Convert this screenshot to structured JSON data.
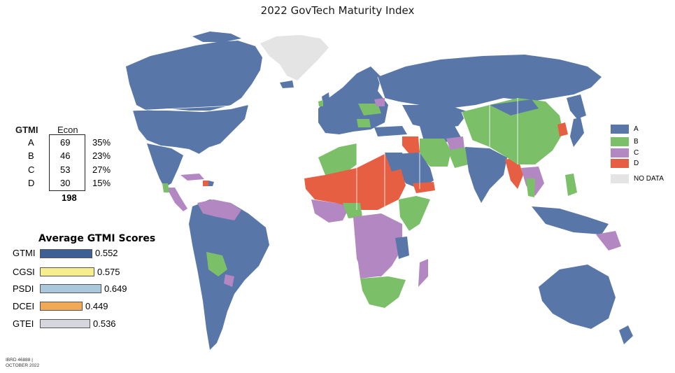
{
  "title": "2022 GovTech Maturity Index",
  "table": {
    "header_gtmi": "GTMI",
    "header_econ": "Econ",
    "rows": [
      {
        "cls": "A",
        "count": "69",
        "pct": "35%"
      },
      {
        "cls": "B",
        "count": "46",
        "pct": "23%"
      },
      {
        "cls": "C",
        "count": "53",
        "pct": "27%"
      },
      {
        "cls": "D",
        "count": "30",
        "pct": "15%"
      }
    ],
    "total": "198"
  },
  "averages": {
    "title": "Average GTMI Scores",
    "items": [
      {
        "label": "GTMI",
        "value": "0.552",
        "score": 0.552,
        "color": "#3d5f96"
      },
      {
        "label": "CGSI",
        "value": "0.575",
        "score": 0.575,
        "color": "#f6ee8e"
      },
      {
        "label": "PSDI",
        "value": "0.649",
        "score": 0.649,
        "color": "#a9c8dc"
      },
      {
        "label": "DCEI",
        "value": "0.449",
        "score": 0.449,
        "color": "#f3a858"
      },
      {
        "label": "GTEI",
        "value": "0.536",
        "score": 0.536,
        "color": "#d6d6de"
      }
    ]
  },
  "legend": [
    {
      "label": "A",
      "color": "#5877a8"
    },
    {
      "label": "B",
      "color": "#7cbf69"
    },
    {
      "label": "C",
      "color": "#b387c2"
    },
    {
      "label": "D",
      "color": "#e65f42"
    },
    {
      "label": "NO DATA",
      "color": "#e4e4e4"
    }
  ],
  "footer": {
    "line1": "IBRD 46888 |",
    "line2": "OCTOBER 2022"
  }
}
